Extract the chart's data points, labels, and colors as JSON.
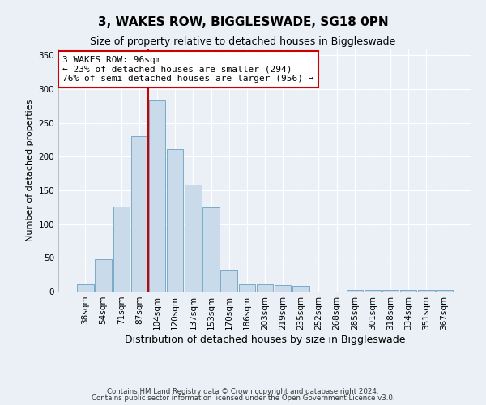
{
  "title": "3, WAKES ROW, BIGGLESWADE, SG18 0PN",
  "subtitle": "Size of property relative to detached houses in Biggleswade",
  "xlabel": "Distribution of detached houses by size in Biggleswade",
  "ylabel": "Number of detached properties",
  "bar_labels": [
    "38sqm",
    "54sqm",
    "71sqm",
    "87sqm",
    "104sqm",
    "120sqm",
    "137sqm",
    "153sqm",
    "170sqm",
    "186sqm",
    "203sqm",
    "219sqm",
    "235sqm",
    "252sqm",
    "268sqm",
    "285sqm",
    "301sqm",
    "318sqm",
    "334sqm",
    "351sqm",
    "367sqm"
  ],
  "bar_values": [
    11,
    48,
    126,
    230,
    283,
    211,
    158,
    125,
    33,
    11,
    11,
    10,
    8,
    0,
    0,
    3,
    2,
    2,
    2,
    2,
    3
  ],
  "bar_color": "#c9daea",
  "bar_edge_color": "#7aaac8",
  "vline_color": "#cc0000",
  "vline_position": 3.5,
  "annotation_text": "3 WAKES ROW: 96sqm\n← 23% of detached houses are smaller (294)\n76% of semi-detached houses are larger (956) →",
  "annotation_box_facecolor": "#ffffff",
  "annotation_box_edgecolor": "#cc0000",
  "ylim": [
    0,
    360
  ],
  "yticks": [
    0,
    50,
    100,
    150,
    200,
    250,
    300,
    350
  ],
  "background_color": "#eaf0f6",
  "grid_color": "#ffffff",
  "title_fontsize": 11,
  "subtitle_fontsize": 9,
  "xlabel_fontsize": 9,
  "ylabel_fontsize": 8,
  "tick_fontsize": 7.5,
  "footer1": "Contains HM Land Registry data © Crown copyright and database right 2024.",
  "footer2": "Contains public sector information licensed under the Open Government Licence v3.0."
}
